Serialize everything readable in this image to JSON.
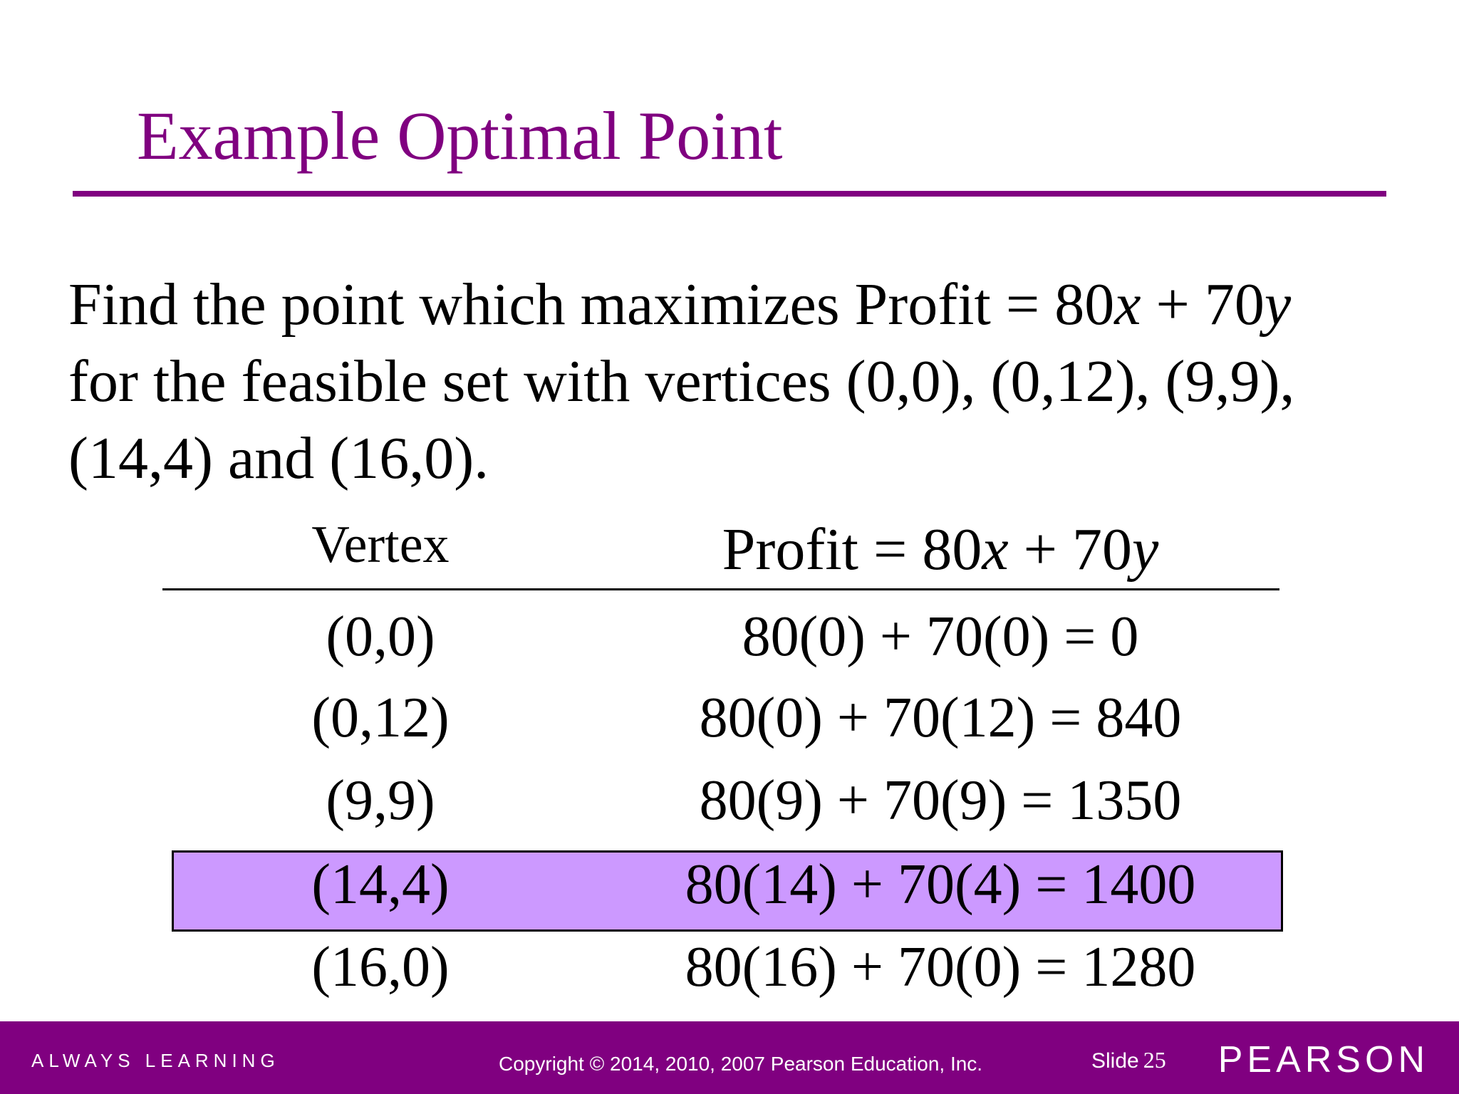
{
  "title": "Example Optimal Point",
  "problem": {
    "line1_a": "Find the point which maximizes Profit = 80",
    "line1_var1": "x",
    "line1_b": " + 70",
    "line1_var2": "y",
    "line2": "for the feasible set with vertices (0,0), (0,12), (9,9),",
    "line3": "(14,4) and (16,0)."
  },
  "table": {
    "header_vertex": "Vertex",
    "header_profit_a": "Profit = 80",
    "header_profit_var1": "x",
    "header_profit_b": " + 70",
    "header_profit_var2": "y",
    "rows": [
      {
        "vertex": "(0,0)",
        "profit": "80(0) + 70(0) = 0",
        "highlighted": false
      },
      {
        "vertex": "(0,12)",
        "profit": "80(0) + 70(12) = 840",
        "highlighted": false
      },
      {
        "vertex": "(9,9)",
        "profit": "80(9) + 70(9) = 1350",
        "highlighted": false
      },
      {
        "vertex": "(14,4)",
        "profit": "80(14) + 70(4) = 1400",
        "highlighted": true
      },
      {
        "vertex": "(16,0)",
        "profit": "80(16) + 70(0) = 1280",
        "highlighted": false
      }
    ]
  },
  "footer": {
    "tagline": "ALWAYS LEARNING",
    "copyright": "Copyright © 2014, 2010, 2007 Pearson Education, Inc.",
    "slide_label": "Slide",
    "slide_number": "25",
    "logo": "PEARSON"
  },
  "colors": {
    "accent": "#800080",
    "highlight": "#cc99ff"
  }
}
